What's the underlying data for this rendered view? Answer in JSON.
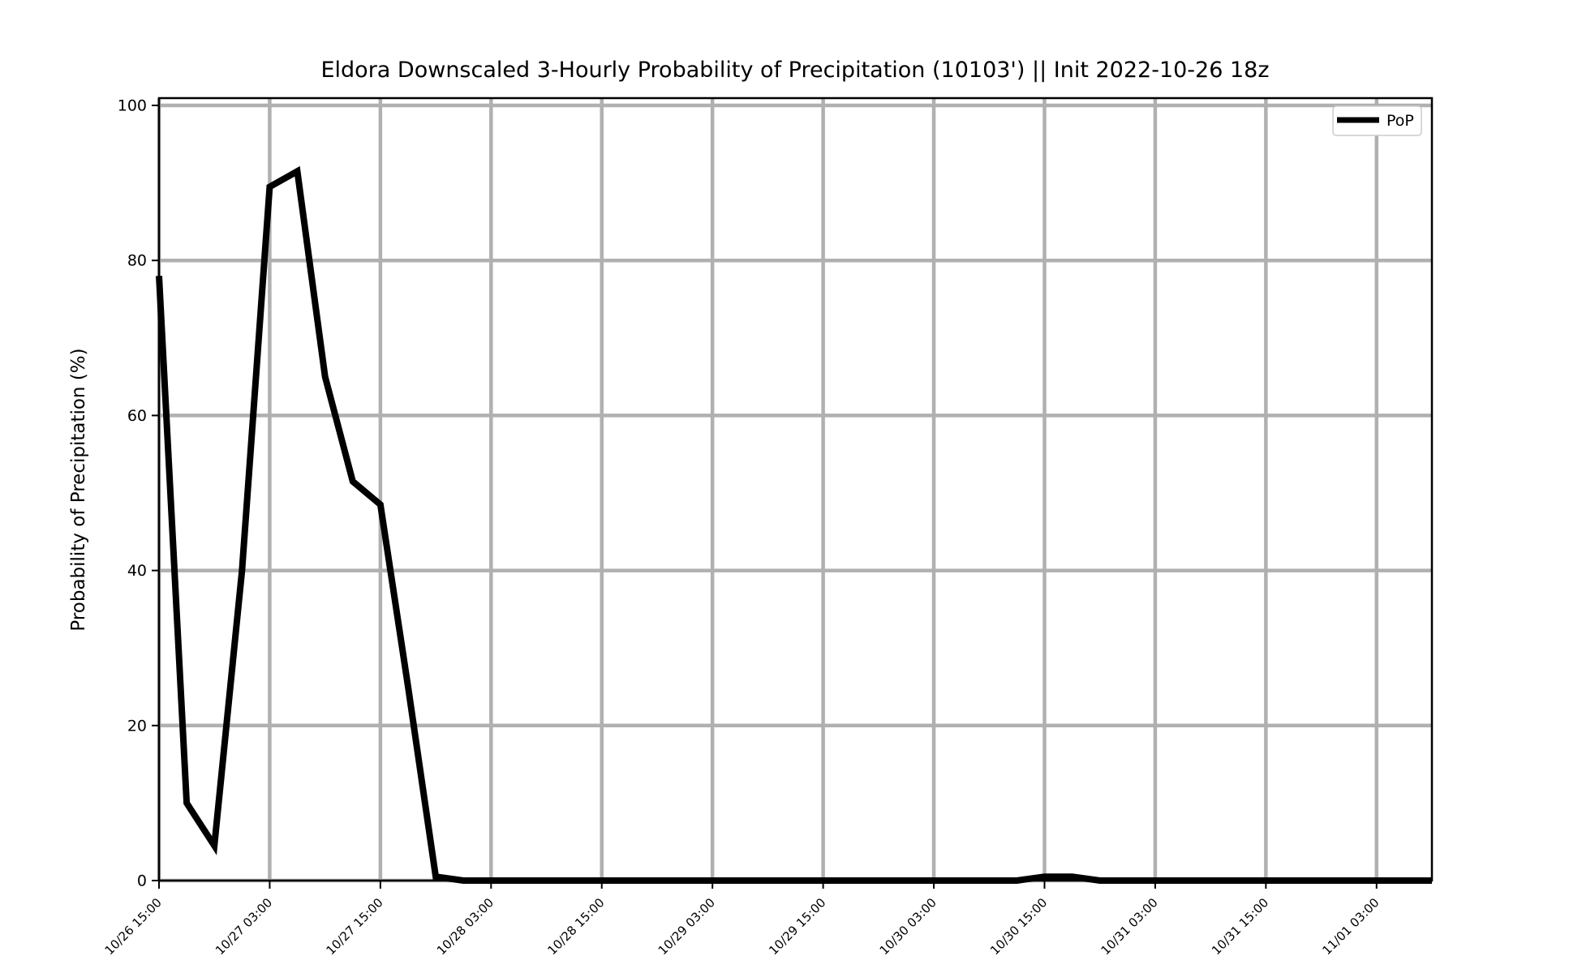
{
  "chart_data": {
    "type": "line",
    "title": "Eldora Downscaled 3-Hourly Probability of Precipitation (10103') || Init 2022-10-26 18z",
    "xlabel": "",
    "ylabel": "Probability of Precipitation (%)",
    "ylim": [
      0,
      100
    ],
    "xlim": [
      "10/26 15:00",
      "11/01 09:00"
    ],
    "yticks": [
      "0",
      "20",
      "40",
      "60",
      "80",
      "100"
    ],
    "xticks": [
      "10/26 15:00",
      "10/27 03:00",
      "10/27 15:00",
      "10/28 03:00",
      "10/28 15:00",
      "10/29 03:00",
      "10/29 15:00",
      "10/30 03:00",
      "10/30 15:00",
      "10/31 03:00",
      "10/31 15:00",
      "11/01 03:00"
    ],
    "grid": true,
    "legend_position": "top-right",
    "series": [
      {
        "name": "PoP",
        "color": "#000000",
        "x": [
          "10/26 15:00",
          "10/26 18:00",
          "10/26 21:00",
          "10/27 00:00",
          "10/27 03:00",
          "10/27 06:00",
          "10/27 09:00",
          "10/27 12:00",
          "10/27 15:00",
          "10/27 18:00",
          "10/27 21:00",
          "10/28 00:00",
          "10/28 03:00",
          "10/28 06:00",
          "10/28 09:00",
          "10/28 12:00",
          "10/28 15:00",
          "10/28 18:00",
          "10/28 21:00",
          "10/29 00:00",
          "10/29 03:00",
          "10/29 06:00",
          "10/29 09:00",
          "10/29 12:00",
          "10/29 15:00",
          "10/29 18:00",
          "10/29 21:00",
          "10/30 00:00",
          "10/30 03:00",
          "10/30 06:00",
          "10/30 09:00",
          "10/30 12:00",
          "10/30 15:00",
          "10/30 18:00",
          "10/30 21:00",
          "10/31 00:00",
          "10/31 03:00",
          "10/31 06:00",
          "10/31 09:00",
          "10/31 12:00",
          "10/31 15:00",
          "10/31 18:00",
          "10/31 21:00",
          "11/01 00:00",
          "11/01 03:00",
          "11/01 06:00",
          "11/01 09:00"
        ],
        "values": [
          78,
          10,
          4.5,
          40,
          89.5,
          91.5,
          65,
          51.5,
          48.5,
          25,
          0.5,
          0,
          0,
          0,
          0,
          0,
          0,
          0,
          0,
          0,
          0,
          0,
          0,
          0,
          0,
          0,
          0,
          0,
          0,
          0,
          0,
          0,
          0.5,
          0.5,
          0,
          0,
          0,
          0,
          0,
          0,
          0,
          0,
          0,
          0,
          0,
          0,
          0
        ]
      }
    ]
  }
}
